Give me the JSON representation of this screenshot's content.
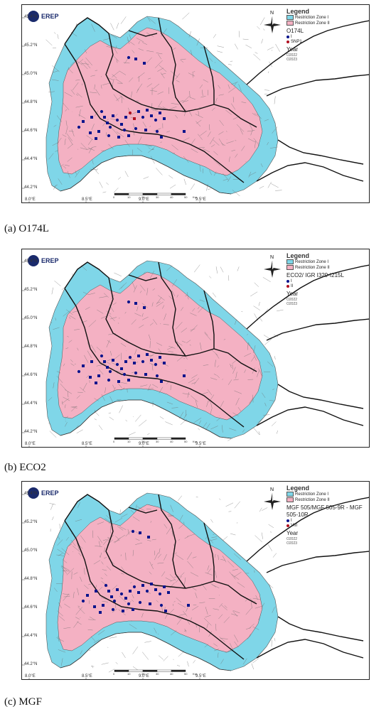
{
  "colors": {
    "zone1": "#7fd6e8",
    "zone2": "#f4b1c3",
    "sea": "#ffffff",
    "border": "#111111",
    "site_i": "#0a148c",
    "site_ii": "#b01020"
  },
  "lat_labels": [
    "45.4°N",
    "45.2°N",
    "45.0°N",
    "44.8°N",
    "44.6°N",
    "44.4°N",
    "44.2°N"
  ],
  "lon_labels": [
    "8.0°E",
    "8.5°E",
    "9.0°E",
    "9.5°E"
  ],
  "scale_labels": [
    "0",
    "10",
    "20",
    "30",
    "40",
    "50",
    "Km"
  ],
  "logo_text": "EREP",
  "north_label": "N",
  "panels": [
    {
      "caption": "(a) O174L",
      "legend": {
        "title": "Legend",
        "zone1": "Restriction Zone I",
        "zone2": "Restriction Zone II",
        "variant_title": "O174L",
        "variant_items": [
          "I",
          "SNP1"
        ],
        "year_title": "Year",
        "years": [
          "O2022",
          "O2023"
        ]
      }
    },
    {
      "caption": "(b) ECO2",
      "legend": {
        "title": "Legend",
        "zone1": "Restriction Zone I",
        "zone2": "Restriction Zone II",
        "variant_title": "ECO2/ IGR I329-I215L",
        "variant_items": [
          "I",
          "II"
        ],
        "year_title": "Year",
        "years": [
          "O2022",
          "O2023"
        ]
      }
    },
    {
      "caption": "(c) MGF",
      "legend": {
        "title": "Legend",
        "zone1": "Restriction Zone I",
        "zone2": "Restriction Zone II",
        "variant_title": "MGF 505/MGF 505-9R - MGF 505-10R",
        "variant_items": [
          "I",
          "VIII"
        ],
        "year_title": "Year",
        "years": [
          "O2022",
          "O2023"
        ]
      }
    }
  ]
}
